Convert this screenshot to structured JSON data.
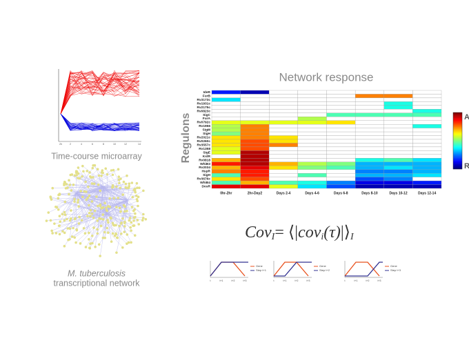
{
  "left": {
    "microarray_label": "Time-course microarray",
    "microarray_xticks": [
      "2h",
      "2",
      "4",
      "6",
      "8",
      "10",
      "12",
      "14"
    ],
    "network_label_italic": "M. tuberculosis",
    "network_label": "transcriptional network"
  },
  "heatmap": {
    "title": "Network response",
    "y_label": "Regulons",
    "rows": [
      "IdeR",
      "FurB",
      "Rv3173c",
      "Rv1931c",
      "Rv2175c",
      "Rv0823c",
      "SigC",
      "FurA",
      "Rv0792c",
      "Rv1956",
      "SigM",
      "SigH",
      "Rv2021c",
      "Rv0260c",
      "Rv3557c",
      "Rv1358",
      "SigE",
      "KstR",
      "Rv0818",
      "WhiB3",
      "Rv2034",
      "HspR",
      "SigH",
      "Rv3676c",
      "WhiB4",
      "DosR"
    ],
    "columns": [
      "0hr-2hr",
      "2hr-Day2",
      "Days 2-4",
      "Days 4-6",
      "Days 6-8",
      "Days 8-10",
      "Days 10-12",
      "Days 12-14"
    ],
    "values": [
      [
        0.15,
        0.05,
        null,
        null,
        null,
        null,
        null,
        null
      ],
      [
        null,
        null,
        null,
        null,
        null,
        0.75,
        0.75,
        null
      ],
      [
        0.35,
        null,
        null,
        null,
        null,
        null,
        null,
        null
      ],
      [
        null,
        null,
        null,
        null,
        null,
        null,
        0.4,
        null
      ],
      [
        null,
        null,
        null,
        null,
        null,
        null,
        0.4,
        null
      ],
      [
        null,
        null,
        null,
        null,
        null,
        null,
        null,
        0.4
      ],
      [
        null,
        null,
        null,
        null,
        0.45,
        0.45,
        0.45,
        0.45
      ],
      [
        null,
        null,
        null,
        0.55,
        null,
        null,
        null,
        null
      ],
      [
        0.6,
        0.6,
        0.6,
        0.6,
        0.65,
        null,
        null,
        null
      ],
      [
        0.55,
        0.75,
        null,
        null,
        null,
        null,
        null,
        0.4
      ],
      [
        0.55,
        0.75,
        null,
        null,
        null,
        null,
        null,
        null
      ],
      [
        0.5,
        0.75,
        null,
        null,
        null,
        null,
        null,
        null
      ],
      [
        0.65,
        0.75,
        0.65,
        null,
        null,
        null,
        null,
        null
      ],
      [
        0.65,
        0.8,
        0.65,
        null,
        null,
        null,
        null,
        null
      ],
      [
        0.65,
        0.8,
        0.75,
        null,
        null,
        null,
        null,
        null
      ],
      [
        0.6,
        0.8,
        null,
        null,
        null,
        null,
        null,
        null
      ],
      [
        0.6,
        0.95,
        null,
        null,
        null,
        null,
        null,
        null
      ],
      [
        null,
        0.95,
        null,
        null,
        null,
        null,
        null,
        null
      ],
      [
        0.7,
        0.95,
        null,
        null,
        null,
        0.4,
        0.45,
        0.35
      ],
      [
        0.85,
        0.95,
        0.7,
        0.55,
        0.5,
        0.3,
        0.3,
        0.3
      ],
      [
        0.7,
        0.9,
        0.65,
        0.5,
        0.45,
        0.3,
        0.35,
        0.3
      ],
      [
        0.75,
        0.85,
        null,
        null,
        null,
        0.25,
        0.25,
        0.3
      ],
      [
        0.45,
        0.85,
        null,
        0.45,
        null,
        0.3,
        0.3,
        0.35
      ],
      [
        0.65,
        0.8,
        null,
        null,
        null,
        0.2,
        0.25,
        null
      ],
      [
        0.45,
        0.7,
        0.45,
        0.4,
        0.25,
        0.1,
        0.1,
        0.15
      ],
      [
        0.9,
        0.9,
        0.6,
        0.35,
        0.2,
        0.05,
        0.05,
        0.05
      ]
    ],
    "colorbar_top": "A",
    "colorbar_bottom": "R"
  },
  "formula": {
    "lhs": "Cov",
    "lhs_sub": "I",
    "eq": "= ⟨|",
    "cov": "cov",
    "cov_sub": "i",
    "arg": "(τ)",
    "close": "|⟩",
    "close_sub": "I"
  },
  "step_panels": [
    {
      "legend": [
        "Gene",
        "Step t+1"
      ],
      "xticks": [
        "t",
        "t+1",
        "t+2",
        "t+3"
      ]
    },
    {
      "legend": [
        "Gene",
        "Step t+2"
      ],
      "xticks": [
        "t",
        "t+1",
        "t+2",
        "t+3"
      ]
    },
    {
      "legend": [
        "Gene",
        "Step t+3"
      ],
      "xticks": [
        "t",
        "t+1",
        "t+2",
        "t+3"
      ]
    }
  ]
}
